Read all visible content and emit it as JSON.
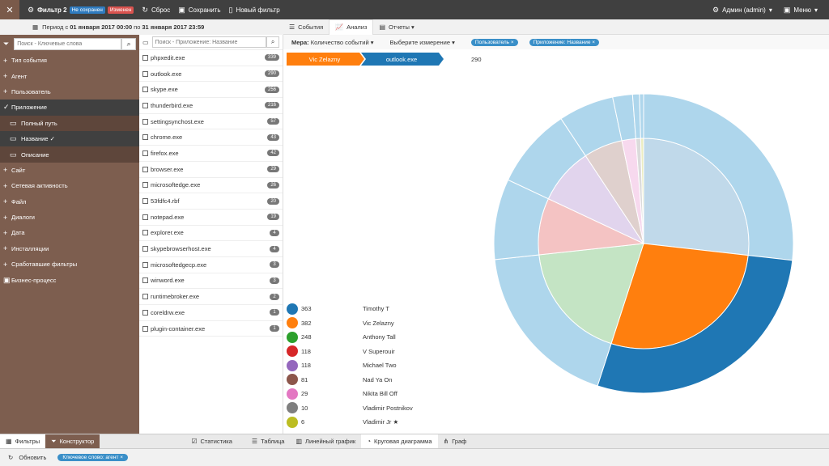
{
  "topbar": {
    "close_icon": "close-icon",
    "filter_name": "Фильтр 2",
    "badge_unsaved": "Не сохранен",
    "badge_changed": "Изменен",
    "reset": "Сброс",
    "save": "Сохранить",
    "new_filter": "Новый фильтр",
    "user": "Админ (admin)",
    "menu": "Меню"
  },
  "period": {
    "prefix": "Период с",
    "from": "01 января 2017 00:00",
    "to_word": "по",
    "to": "31 января 2017 23:59"
  },
  "sidebar": {
    "search_placeholder": "Поиск - Ключевые слова",
    "items": [
      {
        "label": "Тип события",
        "sym": "+",
        "kind": "top"
      },
      {
        "label": "Агент",
        "sym": "+",
        "kind": "top"
      },
      {
        "label": "Пользователь",
        "sym": "+",
        "kind": "top"
      },
      {
        "label": "Приложение",
        "sym": "✓",
        "kind": "active"
      },
      {
        "label": "Полный путь",
        "sym": "▭",
        "kind": "sub"
      },
      {
        "label": "Название ✓",
        "sym": "▭",
        "kind": "sub-active"
      },
      {
        "label": "Описание",
        "sym": "▭",
        "kind": "sub"
      },
      {
        "label": "Сайт",
        "sym": "+",
        "kind": "top"
      },
      {
        "label": "Сетевая активность",
        "sym": "+",
        "kind": "top"
      },
      {
        "label": "Файл",
        "sym": "+",
        "kind": "top"
      },
      {
        "label": "Диалоги",
        "sym": "+",
        "kind": "top"
      },
      {
        "label": "Дата",
        "sym": "+",
        "kind": "top"
      },
      {
        "label": "Инсталляции",
        "sym": "+",
        "kind": "top"
      },
      {
        "label": "Сработавшие фильтры",
        "sym": "+",
        "kind": "top"
      },
      {
        "label": "Бизнес-процесс",
        "sym": "▣",
        "kind": "top"
      }
    ]
  },
  "applist": {
    "search_placeholder": "Поиск - Приложение: Название",
    "items": [
      {
        "name": "phpxedit.exe",
        "count": "339"
      },
      {
        "name": "outlook.exe",
        "count": "290"
      },
      {
        "name": "skype.exe",
        "count": "256"
      },
      {
        "name": "thunderbird.exe",
        "count": "216"
      },
      {
        "name": "settingsynchost.exe",
        "count": "57"
      },
      {
        "name": "chrome.exe",
        "count": "43"
      },
      {
        "name": "firefox.exe",
        "count": "42"
      },
      {
        "name": "browser.exe",
        "count": "29"
      },
      {
        "name": "microsoftedge.exe",
        "count": "26"
      },
      {
        "name": "53fdfc4.rbf",
        "count": "20"
      },
      {
        "name": "notepad.exe",
        "count": "19"
      },
      {
        "name": "explorer.exe",
        "count": "4"
      },
      {
        "name": "skypebrowserhost.exe",
        "count": "4"
      },
      {
        "name": "microsoftedgecp.exe",
        "count": "3"
      },
      {
        "name": "winword.exe",
        "count": "3"
      },
      {
        "name": "runtimebroker.exe",
        "count": "2"
      },
      {
        "name": "coreldrw.exe",
        "count": "1"
      },
      {
        "name": "plugin-container.exe",
        "count": "1"
      }
    ]
  },
  "tabs": [
    {
      "label": "События",
      "icon": "☰",
      "active": false
    },
    {
      "label": "Анализ",
      "icon": "📈",
      "active": true
    },
    {
      "label": "Отчеты ▾",
      "icon": "▤",
      "active": false
    }
  ],
  "measure": {
    "label": "Мера:",
    "value": "Количество событий ▾",
    "dimension": "Выберите измерение ▾",
    "tag1": "Пользователь ×",
    "tag2": "Приложение: Название ×"
  },
  "crumbs": {
    "first": "Vic Zelazny",
    "second": "outlook.exe",
    "total": "290",
    "first_color": "#ff7f0e",
    "second_color": "#1f77b4"
  },
  "chart_data": {
    "type": "pie",
    "style": "sunburst",
    "categories": [
      "Timothy T",
      "Vic Zelazny",
      "Anthony Tall",
      "V Superouir",
      "Michael Two",
      "Nad Ya On",
      "Nikita Bill Off",
      "Vladimir Postnikov",
      "Vladimir Jr ★"
    ],
    "values": [
      363,
      382,
      248,
      118,
      118,
      81,
      29,
      10,
      6
    ],
    "colors": [
      "#1f77b4",
      "#ff7f0e",
      "#2ca02c",
      "#d62728",
      "#9467bd",
      "#8c564b",
      "#e377c2",
      "#7f7f7f",
      "#bcbd22"
    ],
    "highlighted": "Vic Zelazny"
  },
  "bottom_tabs": [
    {
      "label": "Фильтры",
      "icon": "▦",
      "kind": "active"
    },
    {
      "label": "Конструктор",
      "icon": "⏷",
      "kind": "dark"
    },
    {
      "label": "Статистика",
      "icon": "☑",
      "kind": "normal"
    },
    {
      "label": "Таблица",
      "icon": "☰",
      "kind": "normal"
    },
    {
      "label": "Линейный график",
      "icon": "▥",
      "kind": "normal"
    },
    {
      "label": "Круговая диаграмма",
      "icon": "◔",
      "kind": "active"
    },
    {
      "label": "Граф",
      "icon": "⋔",
      "kind": "normal"
    }
  ],
  "status": {
    "refresh": "Обновить",
    "tag": "Ключевое слово: агент ×"
  }
}
